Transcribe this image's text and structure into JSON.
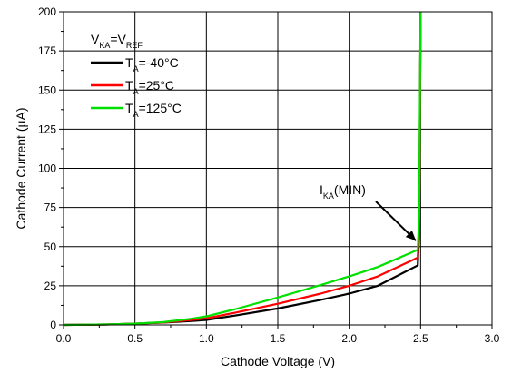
{
  "chart_data": {
    "type": "line",
    "xlabel": "Cathode Voltage (V)",
    "ylabel": "Cathode Current (µA)",
    "xlim": [
      0,
      3
    ],
    "ylim": [
      0,
      200
    ],
    "x_ticks": [
      "0.0",
      "0.5",
      "1.0",
      "1.5",
      "2.0",
      "2.5",
      "3.0"
    ],
    "y_ticks": [
      "0",
      "25",
      "50",
      "75",
      "100",
      "125",
      "150",
      "175",
      "200"
    ],
    "grid": true,
    "legend": {
      "placement": "top-left",
      "header": {
        "main1": "V",
        "sub1": "KA",
        "mid": "=V",
        "sub2": "REF"
      },
      "entries": [
        {
          "main": "T",
          "sub": "A",
          "rest": "=-40°C"
        },
        {
          "main": "T",
          "sub": "A",
          "rest": "=25°C"
        },
        {
          "main": "T",
          "sub": "A",
          "rest": "=125°C"
        }
      ]
    },
    "series": [
      {
        "color": "#000000",
        "x": [
          0,
          0.3,
          0.5,
          0.7,
          0.9,
          1.0,
          1.2,
          1.5,
          1.8,
          2.0,
          2.2,
          2.48,
          2.49,
          2.495,
          2.5
        ],
        "y": [
          0,
          0.3,
          0.8,
          1.5,
          2.5,
          3.2,
          6.0,
          10.5,
          16.0,
          20.0,
          25.0,
          38.0,
          60.0,
          120.0,
          200.0
        ]
      },
      {
        "color": "#ff0000",
        "x": [
          0,
          0.3,
          0.5,
          0.7,
          0.9,
          1.0,
          1.2,
          1.5,
          1.8,
          2.0,
          2.2,
          2.48,
          2.49,
          2.495,
          2.5
        ],
        "y": [
          0,
          0.3,
          0.8,
          1.6,
          3.2,
          4.2,
          7.8,
          13.5,
          20.0,
          25.0,
          31.0,
          43.0,
          65.0,
          130.0,
          200.0
        ]
      },
      {
        "color": "#00e000",
        "x": [
          0,
          0.3,
          0.5,
          0.7,
          0.9,
          1.0,
          1.2,
          1.5,
          1.8,
          2.0,
          2.2,
          2.48,
          2.49,
          2.495,
          2.5
        ],
        "y": [
          0,
          0.3,
          0.8,
          1.8,
          4.0,
          5.5,
          10.0,
          17.5,
          25.5,
          31.0,
          37.0,
          48.0,
          70.0,
          140.0,
          200.0
        ]
      }
    ],
    "annotations": [
      {
        "main": "I",
        "sub": "KA",
        "rest": "(MIN)",
        "arrow_to": [
          2.48,
          48
        ]
      }
    ]
  }
}
